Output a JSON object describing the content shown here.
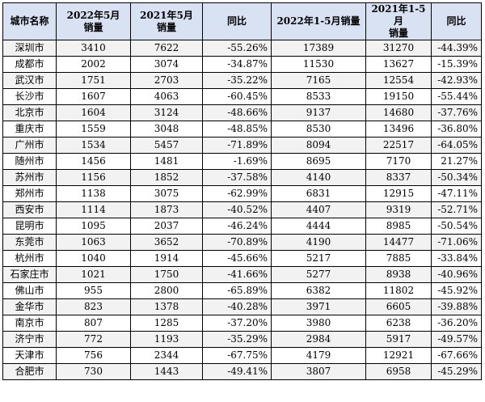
{
  "headers": [
    "城市名称",
    "2022年5月\n销量",
    "2021年5月\n销量",
    "同比",
    "2022年1-5月销量",
    "2021年1-5月\n销量",
    "同比"
  ],
  "rows": [
    [
      "深圳市",
      "3410",
      "7622",
      "-55.26%",
      "17389",
      "31270",
      "-44.39%"
    ],
    [
      "成都市",
      "2002",
      "3074",
      "-34.87%",
      "11530",
      "13627",
      "-15.39%"
    ],
    [
      "武汉市",
      "1751",
      "2703",
      "-35.22%",
      "7165",
      "12554",
      "-42.93%"
    ],
    [
      "长沙市",
      "1607",
      "4063",
      "-60.45%",
      "8533",
      "19150",
      "-55.44%"
    ],
    [
      "北京市",
      "1604",
      "3124",
      "-48.66%",
      "9137",
      "14680",
      "-37.76%"
    ],
    [
      "重庆市",
      "1559",
      "3048",
      "-48.85%",
      "8530",
      "13496",
      "-36.80%"
    ],
    [
      "广州市",
      "1534",
      "5457",
      "-71.89%",
      "8094",
      "22517",
      "-64.05%"
    ],
    [
      "随州市",
      "1456",
      "1481",
      "-1.69%",
      "8695",
      "7170",
      "21.27%"
    ],
    [
      "苏州市",
      "1156",
      "1852",
      "-37.58%",
      "4140",
      "8337",
      "-50.34%"
    ],
    [
      "郑州市",
      "1138",
      "3075",
      "-62.99%",
      "6831",
      "12915",
      "-47.11%"
    ],
    [
      "西安市",
      "1114",
      "1873",
      "-40.52%",
      "4407",
      "9319",
      "-52.71%"
    ],
    [
      "昆明市",
      "1095",
      "2037",
      "-46.24%",
      "4444",
      "8985",
      "-50.54%"
    ],
    [
      "东莞市",
      "1063",
      "3652",
      "-70.89%",
      "4190",
      "14477",
      "-71.06%"
    ],
    [
      "杭州市",
      "1040",
      "1914",
      "-45.66%",
      "5217",
      "7885",
      "-33.84%"
    ],
    [
      "石家庄市",
      "1021",
      "1750",
      "-41.66%",
      "5277",
      "8938",
      "-40.96%"
    ],
    [
      "佛山市",
      "955",
      "2800",
      "-65.89%",
      "6382",
      "11802",
      "-45.92%"
    ],
    [
      "金华市",
      "823",
      "1378",
      "-40.28%",
      "3971",
      "6605",
      "-39.88%"
    ],
    [
      "南京市",
      "807",
      "1285",
      "-37.20%",
      "3980",
      "6238",
      "-36.20%"
    ],
    [
      "济宁市",
      "772",
      "1193",
      "-35.29%",
      "2984",
      "5917",
      "-49.57%"
    ],
    [
      "天津市",
      "756",
      "2344",
      "-67.75%",
      "4179",
      "12921",
      "-67.66%"
    ],
    [
      "合肥市",
      "730",
      "1443",
      "-49.41%",
      "3807",
      "6958",
      "-45.29%"
    ]
  ]
}
